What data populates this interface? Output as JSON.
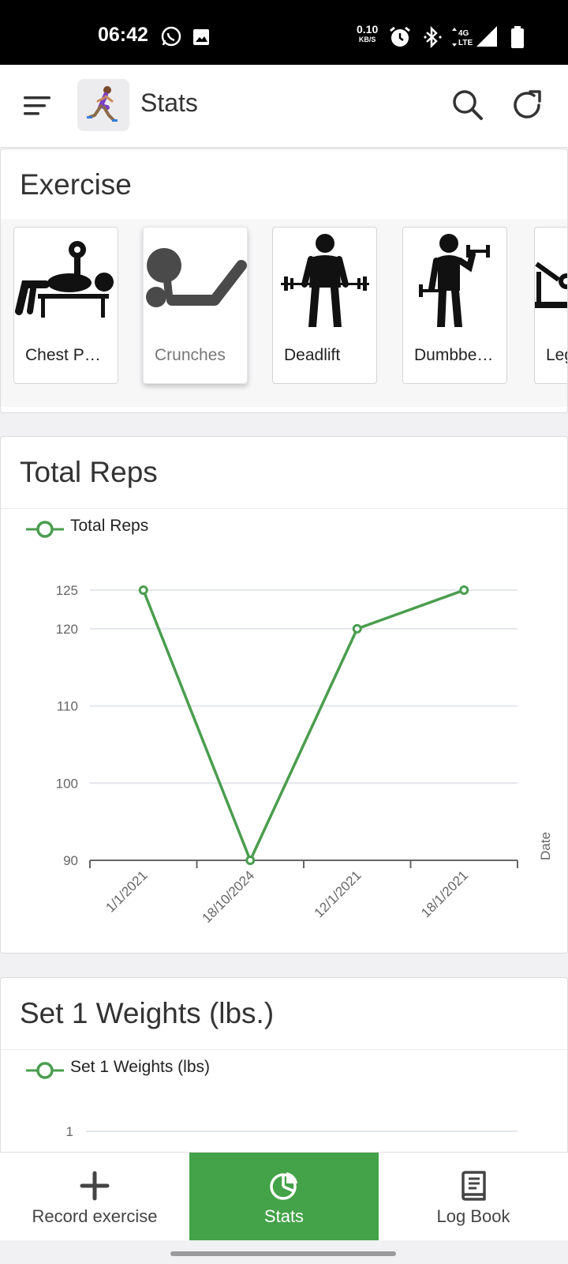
{
  "status_bar": {
    "time": "06:42",
    "speed_value": "0.10",
    "speed_unit": "KB/S",
    "network": "4G LTE",
    "icons": [
      "whatsapp-icon",
      "image-icon",
      "alarm-icon",
      "bluetooth-icon",
      "signal-icon",
      "battery-icon"
    ]
  },
  "app_bar": {
    "title": "Stats",
    "icons": [
      "menu-icon",
      "runner-logo",
      "search-icon",
      "refresh-icon"
    ]
  },
  "exercise_card": {
    "title": "Exercise",
    "items": [
      {
        "label": "Chest P…",
        "icon": "bench-press-icon",
        "selected": false
      },
      {
        "label": "Crunches",
        "icon": "crunches-icon",
        "selected": true
      },
      {
        "label": "Deadlift",
        "icon": "deadlift-icon",
        "selected": false
      },
      {
        "label": "Dumbbe…",
        "icon": "dumbbell-icon",
        "selected": false
      },
      {
        "label": "Leg",
        "icon": "leg-press-icon",
        "selected": false
      }
    ]
  },
  "total_reps_card": {
    "title": "Total Reps",
    "legend": "Total Reps"
  },
  "weights_card": {
    "title": "Set 1 Weights (lbs.)",
    "legend": "Set 1 Weights (lbs)"
  },
  "bottom_nav": {
    "items": [
      {
        "label": "Record exercise",
        "icon": "plus-icon",
        "active": false
      },
      {
        "label": "Stats",
        "icon": "pie-chart-icon",
        "active": true
      },
      {
        "label": "Log Book",
        "icon": "book-icon",
        "active": false
      }
    ]
  },
  "colors": {
    "accent": "#44a248",
    "line": "#4a9d4e",
    "status_bar": "#000000"
  },
  "chart_data": [
    {
      "type": "line",
      "title": "",
      "xlabel": "Date",
      "ylabel": "",
      "categories": [
        "1/1/2021",
        "18/10/2024",
        "12/1/2021",
        "18/1/2021"
      ],
      "series": [
        {
          "name": "Total Reps",
          "values": [
            125,
            90,
            120,
            125
          ]
        }
      ],
      "y_ticks": [
        90,
        100,
        110,
        120,
        125
      ],
      "ylim": [
        90,
        125
      ],
      "grid": true,
      "legend": "top-left"
    },
    {
      "type": "line",
      "title": "",
      "xlabel": "",
      "ylabel": "",
      "categories": [],
      "series": [
        {
          "name": "Set 1 Weights (lbs)",
          "values": []
        }
      ],
      "y_ticks": [
        1
      ],
      "grid": true,
      "legend": "top-left"
    }
  ]
}
